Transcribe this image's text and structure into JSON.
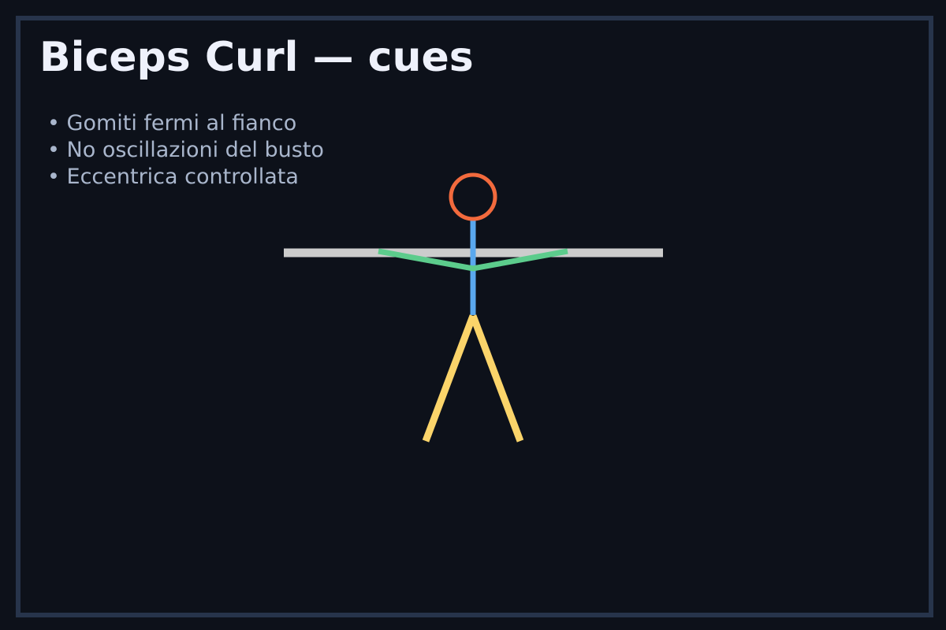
{
  "title": "Biceps Curl — cues",
  "cues": [
    "Gomiti fermi al fianco",
    "No oscillazioni del busto",
    "Eccentrica controllata"
  ],
  "colors": {
    "background": "#0d111a",
    "frame": "#27344b",
    "title": "#eef1fb",
    "cue_text": "#a9b6cc",
    "head": "#f26a3d",
    "torso": "#5aa8ee",
    "arms": "#5ccc8c",
    "legs": "#fbd46a",
    "bar": "#cccccc"
  }
}
